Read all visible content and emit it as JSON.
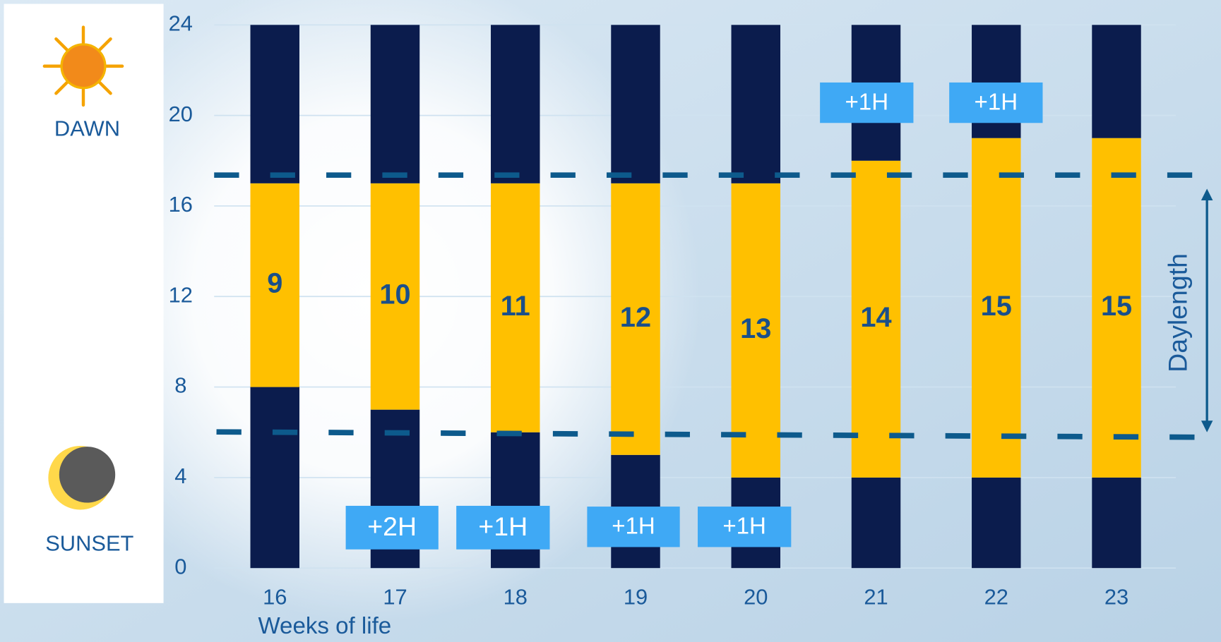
{
  "chart_data": {
    "type": "stacked-bar",
    "categories": [
      "16",
      "17",
      "18",
      "19",
      "20",
      "21",
      "22",
      "23"
    ],
    "series": [
      {
        "color": "#0b1c4d",
        "values": [
          8,
          7,
          6,
          5,
          4,
          4,
          4,
          4
        ]
      },
      {
        "color": "#ffc000",
        "values": [
          9,
          10,
          11,
          12,
          13,
          14,
          15,
          15
        ]
      },
      {
        "color": "#0b1c4d",
        "values": [
          7,
          7,
          7,
          7,
          7,
          6,
          5,
          5
        ]
      }
    ],
    "ylim": [
      0,
      24
    ],
    "yticks": [
      0,
      4,
      8,
      12,
      16,
      20,
      24
    ],
    "grid": true,
    "xlabel": "Weeks of life",
    "dawn_label": "DAWN",
    "sunset_label": "SUNSET",
    "span_label": "Daylength",
    "annotations": [
      "+2H",
      "+1H",
      "+1H",
      "+1H",
      "+1H",
      "+1H"
    ]
  }
}
